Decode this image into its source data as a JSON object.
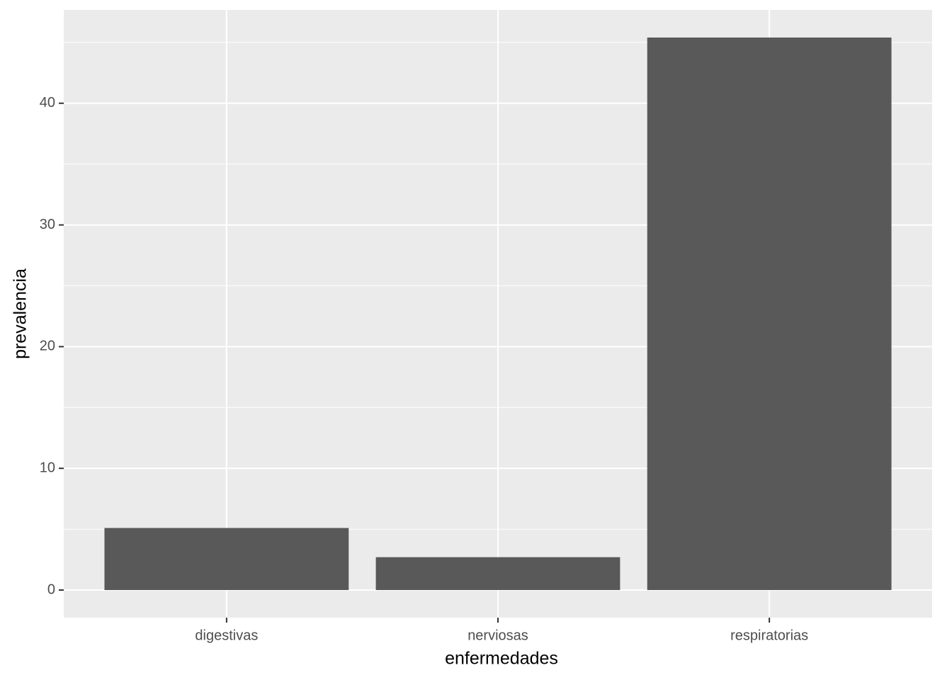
{
  "chart_data": {
    "type": "bar",
    "x_label": "enfermedades",
    "y_label": "prevalencia",
    "categories": [
      "digestivas",
      "nerviosas",
      "respiratorias"
    ],
    "values": [
      5.1,
      2.7,
      45.4
    ],
    "color": "#595959",
    "ylim": [
      -2.27,
      47.67
    ],
    "yticks": [
      0,
      10,
      20,
      30,
      40
    ],
    "yminor": [
      5,
      15,
      25,
      35,
      45
    ],
    "grid": true
  }
}
